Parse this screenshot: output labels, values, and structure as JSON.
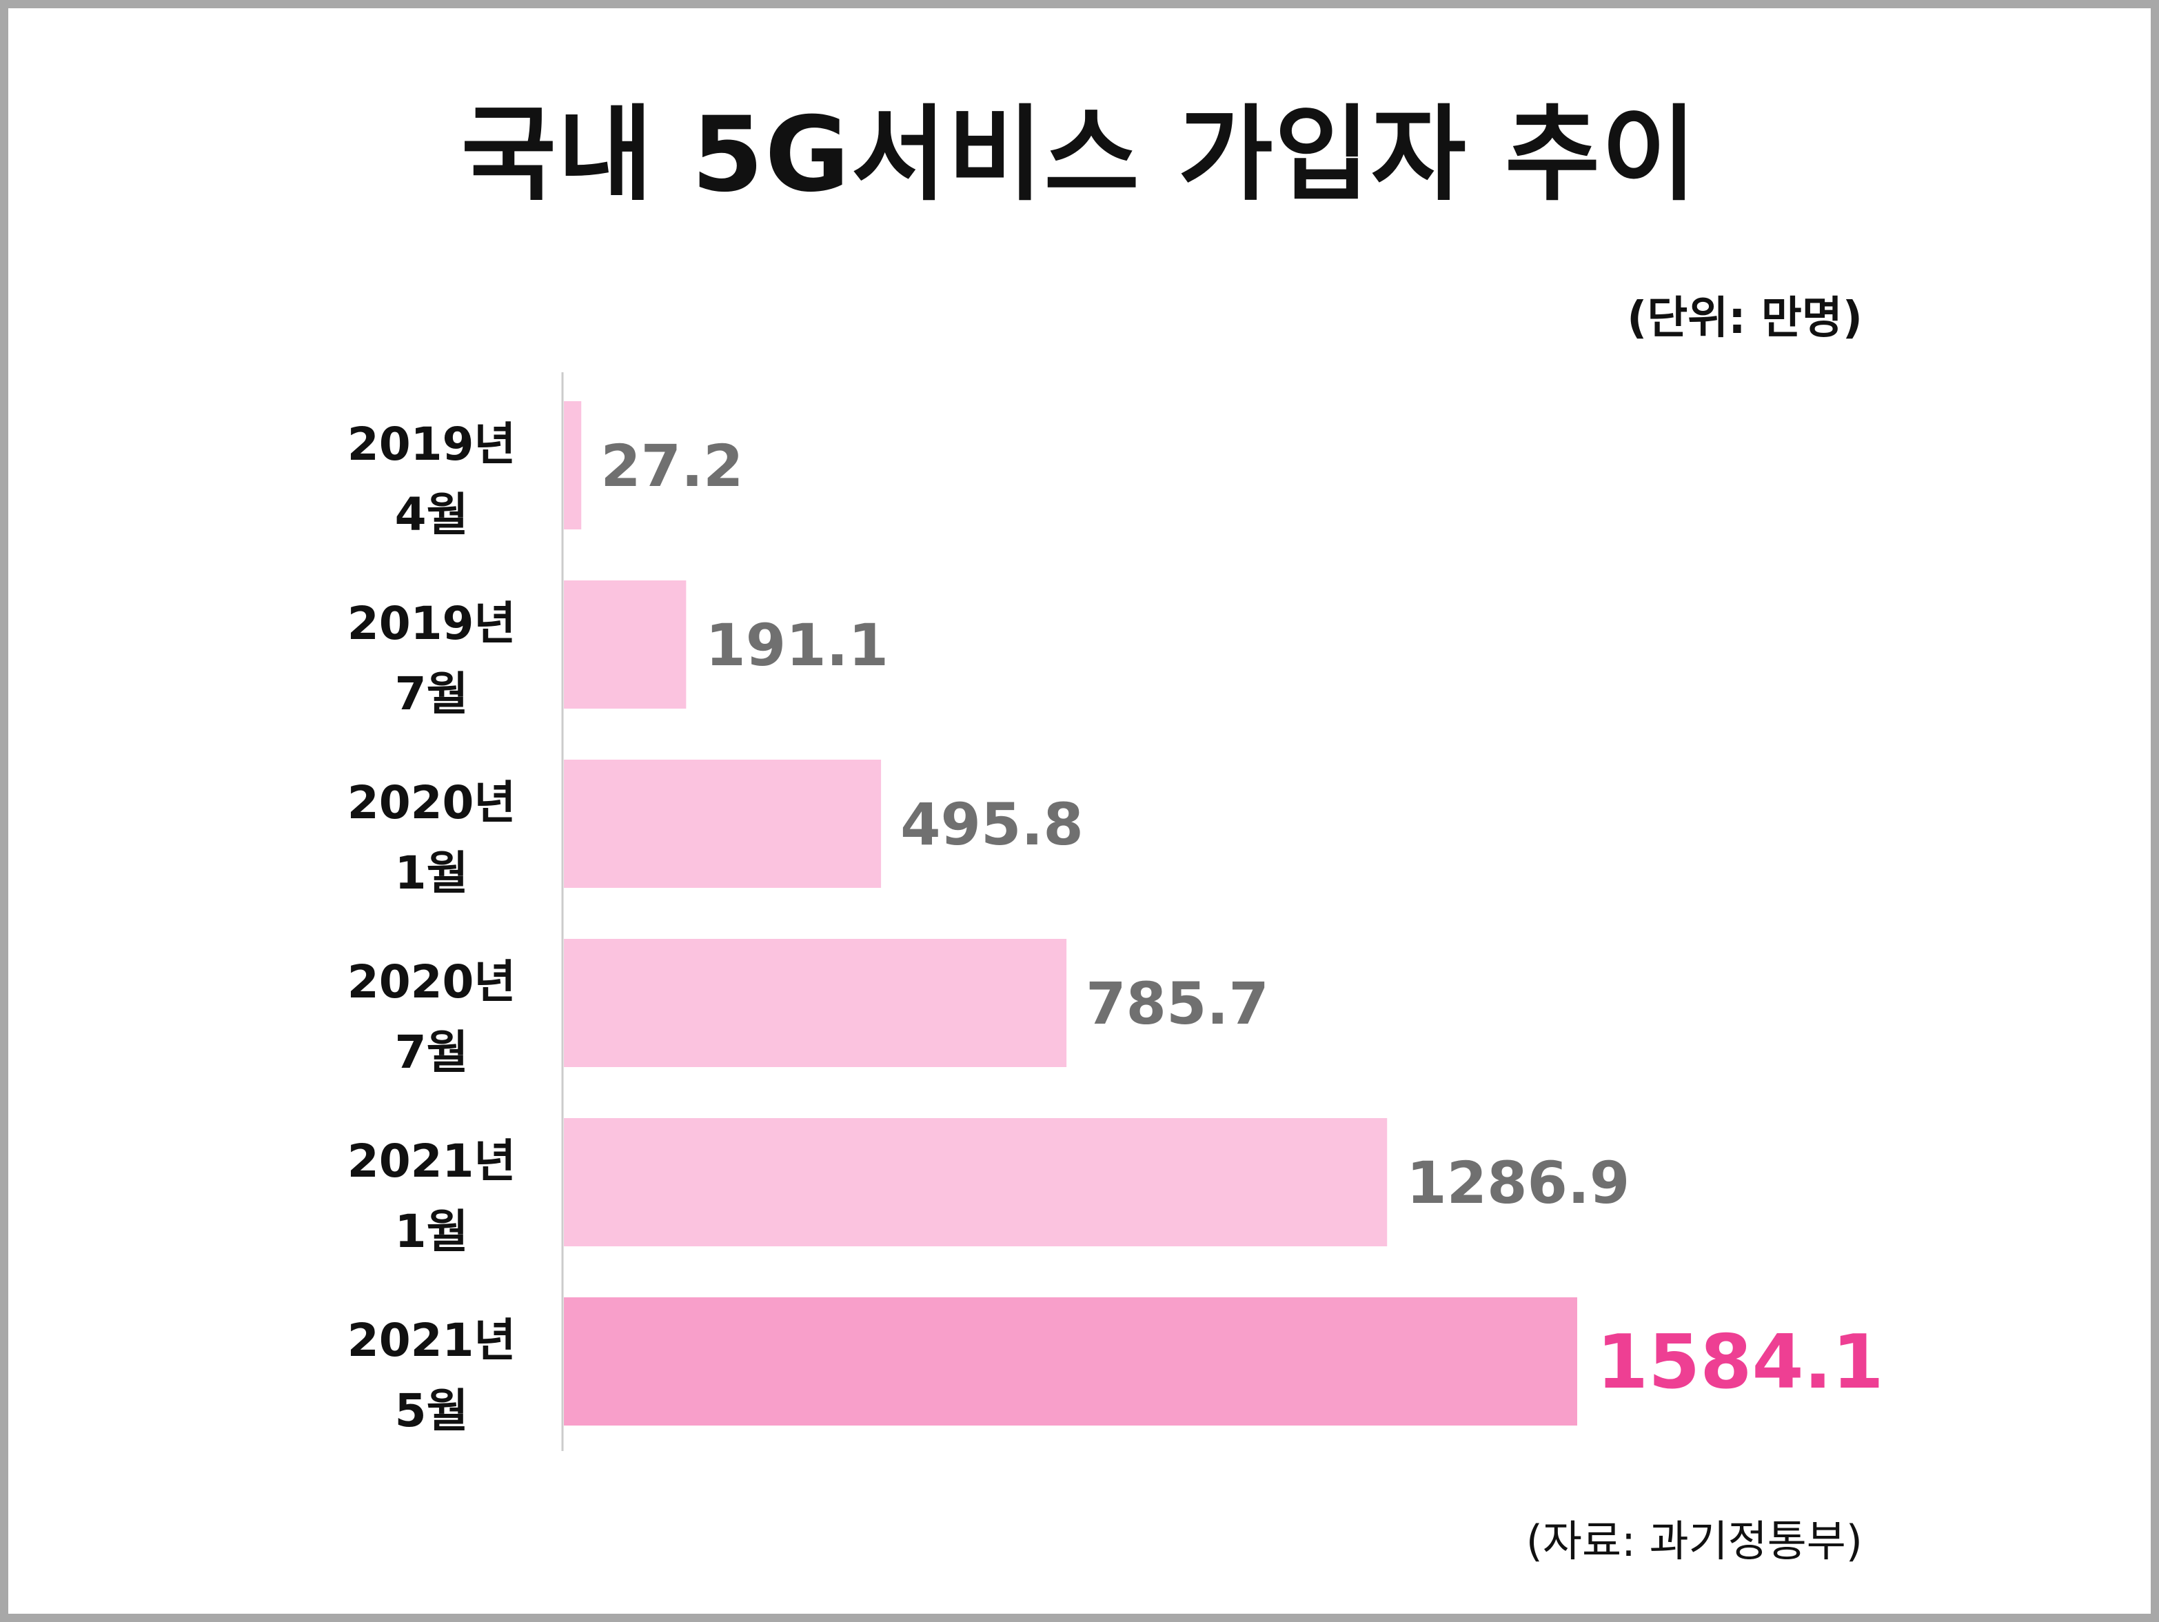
{
  "chart_data": {
    "type": "bar",
    "orientation": "horizontal",
    "title": "국내 5G서비스 가입자 추이",
    "unit_note": "(단위: 만명)",
    "source_note": "(자료: 과기정통부)",
    "categories": [
      [
        "2019년",
        "4월"
      ],
      [
        "2019년",
        "7월"
      ],
      [
        "2020년",
        "1월"
      ],
      [
        "2020년",
        "7월"
      ],
      [
        "2021년",
        "1월"
      ],
      [
        "2021년",
        "5월"
      ]
    ],
    "values": [
      27.2,
      191.1,
      495.8,
      785.7,
      1286.9,
      1584.1
    ],
    "value_labels": [
      "27.2",
      "191.1",
      "495.8",
      "785.7",
      "1286.9",
      "1584.1"
    ],
    "highlight_index": 5,
    "grid": false,
    "legend": "none",
    "colors": {
      "bar": "#fbc3df",
      "bar_highlight": "#f89fca",
      "value_text": "#707070",
      "value_highlight": "#ee3f93",
      "axis": "#cccccc",
      "frame": "#a8a8a8"
    }
  }
}
